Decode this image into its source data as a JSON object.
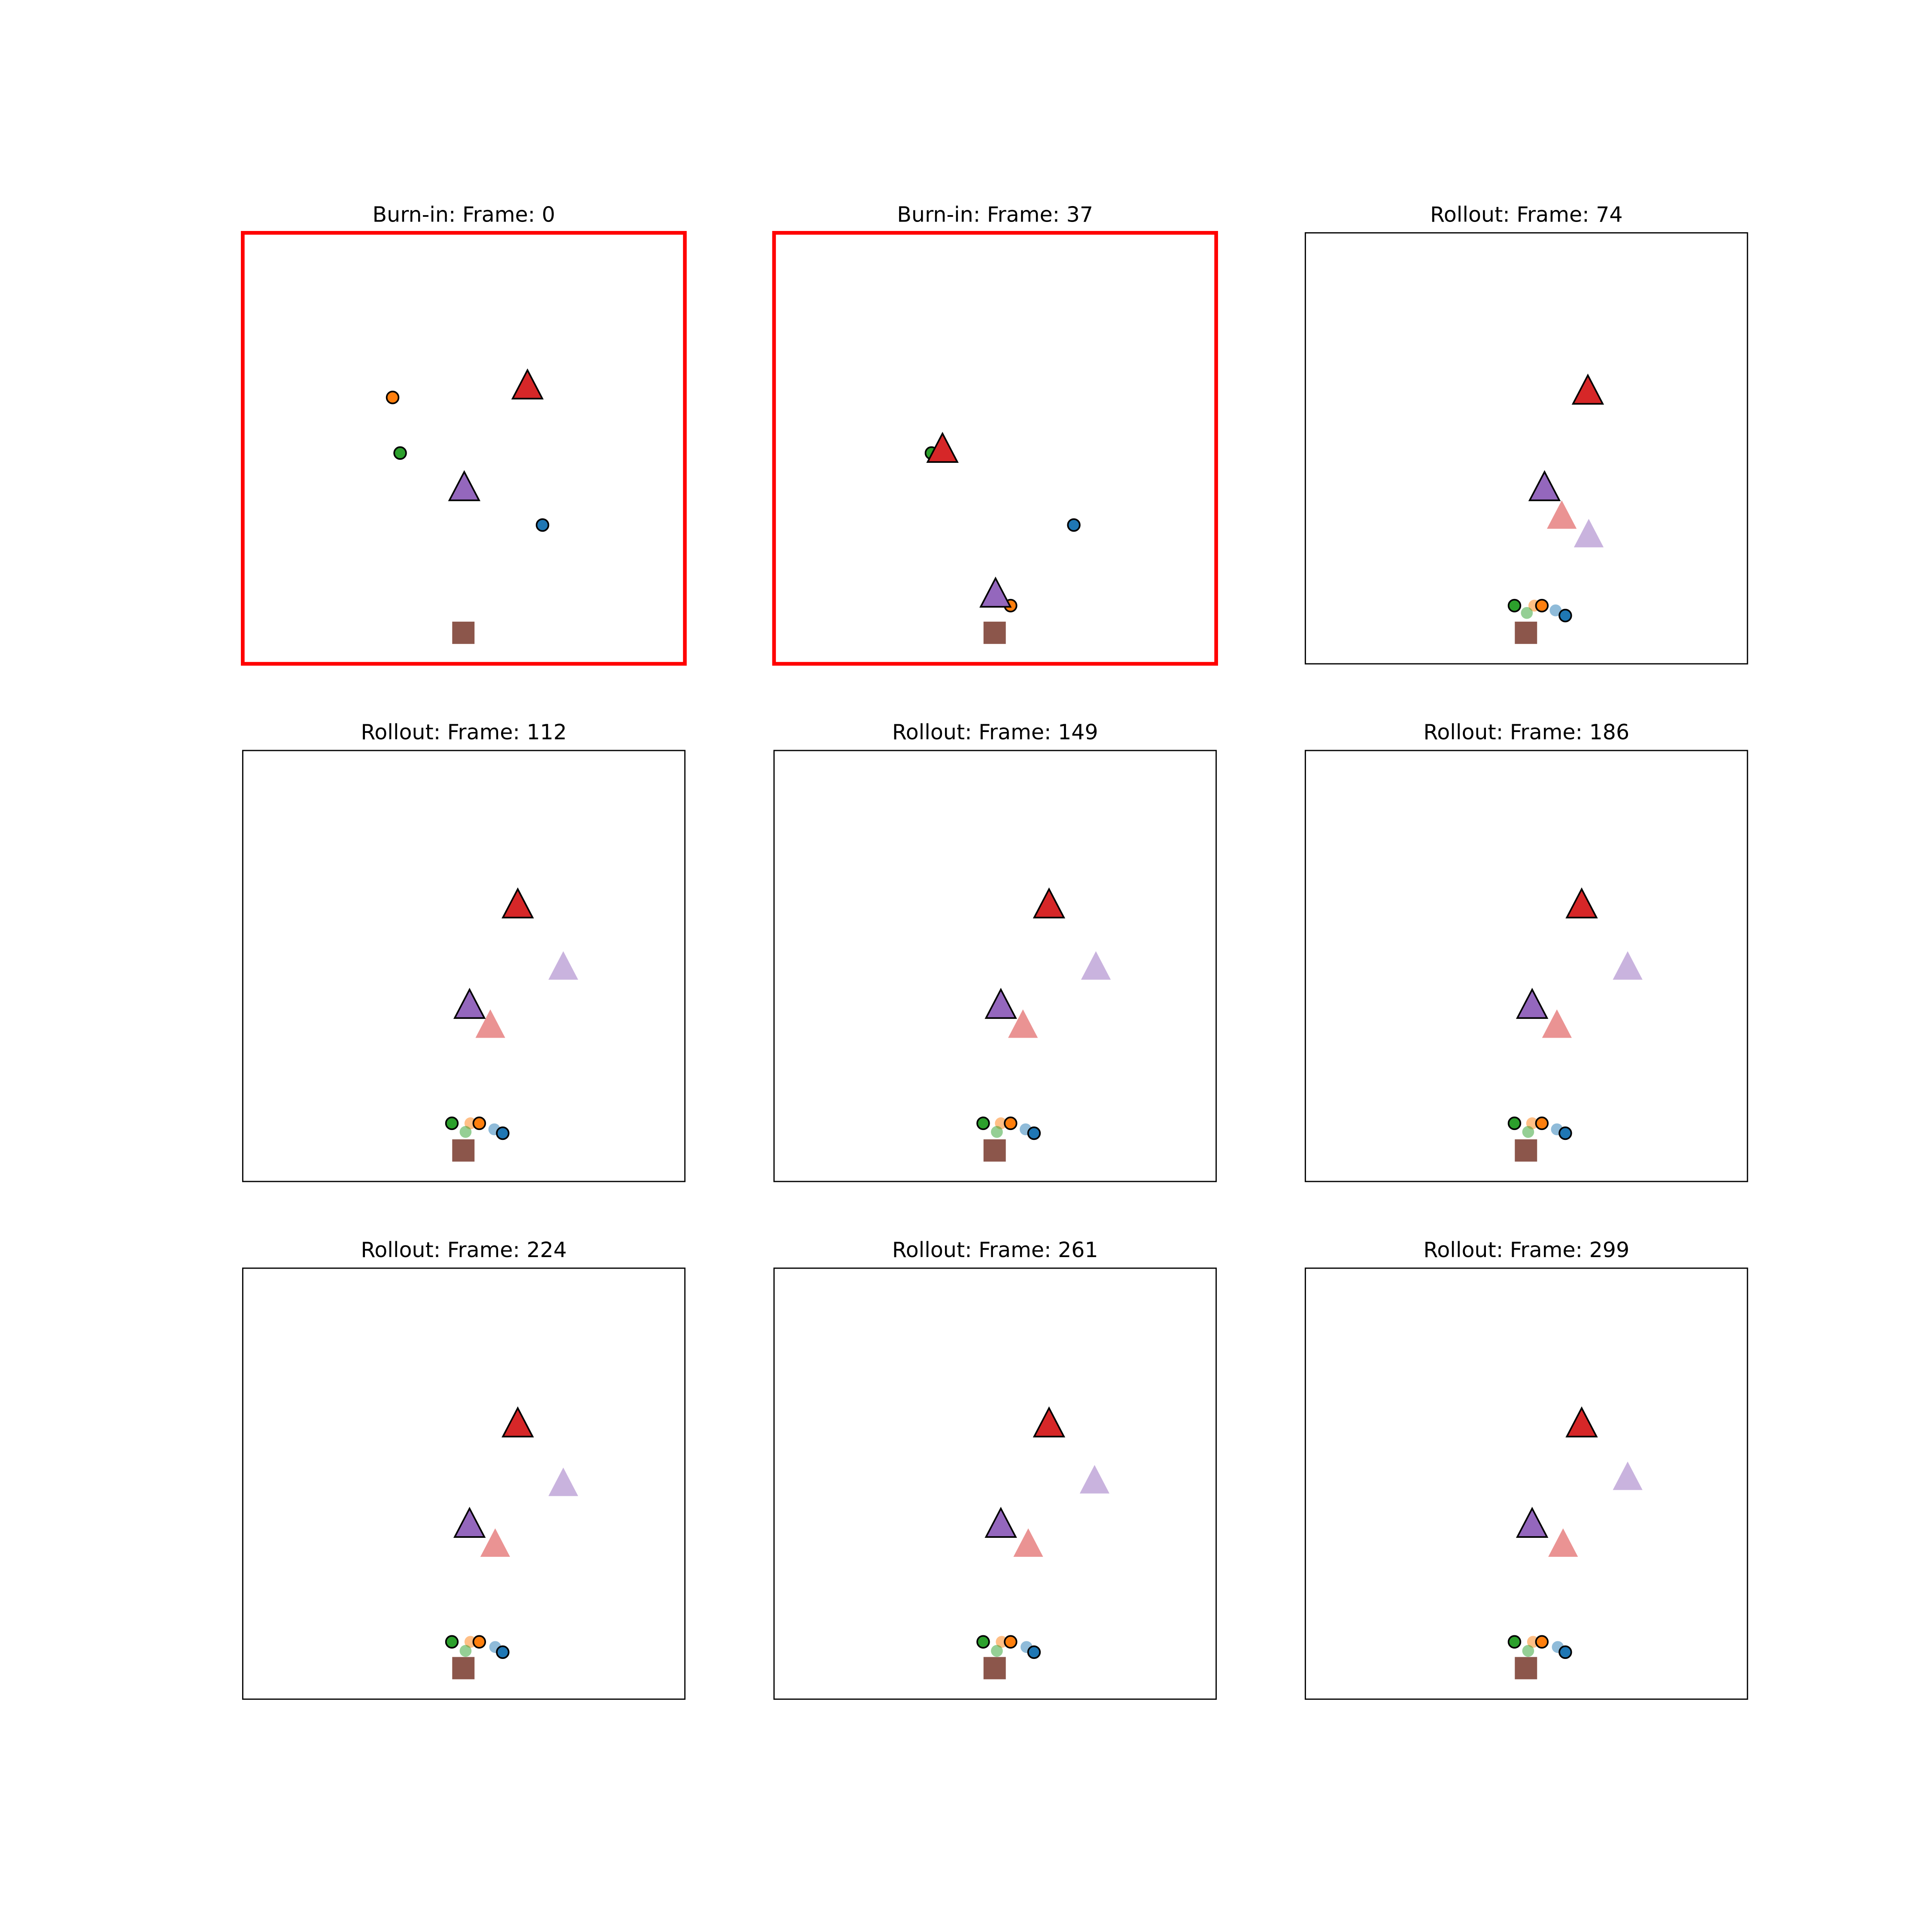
{
  "chart_data": {
    "type": "scatter",
    "xlim": [
      0,
      1
    ],
    "ylim": [
      0,
      1
    ],
    "panels": [
      {
        "title": "Burn-in: Frame: 0",
        "highlighted": true,
        "markers": [
          {
            "shape": "circle",
            "color": "#ff7f0e",
            "faded": false,
            "x": 0.339,
            "y": 0.618
          },
          {
            "shape": "triangle",
            "color": "#d62728",
            "faded": false,
            "x": 0.644,
            "y": 0.644
          },
          {
            "shape": "circle",
            "color": "#2ca02c",
            "faded": false,
            "x": 0.356,
            "y": 0.489
          },
          {
            "shape": "triangle",
            "color": "#9467bd",
            "faded": false,
            "x": 0.501,
            "y": 0.408
          },
          {
            "shape": "circle",
            "color": "#1f77b4",
            "faded": false,
            "x": 0.678,
            "y": 0.322
          },
          {
            "shape": "square",
            "color": "#8c564b",
            "faded": false,
            "x": 0.499,
            "y": 0.072
          }
        ]
      },
      {
        "title": "Burn-in: Frame: 37",
        "highlighted": true,
        "markers": [
          {
            "shape": "circle",
            "color": "#2ca02c",
            "faded": false,
            "x": 0.356,
            "y": 0.489
          },
          {
            "shape": "triangle",
            "color": "#d62728",
            "faded": false,
            "x": 0.381,
            "y": 0.497
          },
          {
            "shape": "circle",
            "color": "#1f77b4",
            "faded": false,
            "x": 0.678,
            "y": 0.322
          },
          {
            "shape": "circle",
            "color": "#ff7f0e",
            "faded": false,
            "x": 0.535,
            "y": 0.135
          },
          {
            "shape": "triangle",
            "color": "#9467bd",
            "faded": false,
            "x": 0.501,
            "y": 0.161
          },
          {
            "shape": "square",
            "color": "#8c564b",
            "faded": false,
            "x": 0.499,
            "y": 0.072
          }
        ]
      },
      {
        "title": "Rollout: Frame: 74",
        "highlighted": false,
        "markers": [
          {
            "shape": "triangle",
            "color": "#d62728",
            "faded": true,
            "x": 0.58,
            "y": 0.342
          },
          {
            "shape": "triangle",
            "color": "#9467bd",
            "faded": true,
            "x": 0.641,
            "y": 0.299
          },
          {
            "shape": "circle",
            "color": "#ff7f0e",
            "faded": true,
            "x": 0.518,
            "y": 0.135
          },
          {
            "shape": "circle",
            "color": "#2ca02c",
            "faded": true,
            "x": 0.501,
            "y": 0.118
          },
          {
            "shape": "circle",
            "color": "#1f77b4",
            "faded": true,
            "x": 0.566,
            "y": 0.124
          },
          {
            "shape": "triangle",
            "color": "#d62728",
            "faded": false,
            "x": 0.639,
            "y": 0.632
          },
          {
            "shape": "triangle",
            "color": "#9467bd",
            "faded": false,
            "x": 0.541,
            "y": 0.408
          },
          {
            "shape": "circle",
            "color": "#2ca02c",
            "faded": false,
            "x": 0.473,
            "y": 0.135
          },
          {
            "shape": "circle",
            "color": "#ff7f0e",
            "faded": false,
            "x": 0.535,
            "y": 0.135
          },
          {
            "shape": "circle",
            "color": "#1f77b4",
            "faded": false,
            "x": 0.588,
            "y": 0.112
          },
          {
            "shape": "square",
            "color": "#8c564b",
            "faded": false,
            "x": 0.499,
            "y": 0.072
          }
        ]
      },
      {
        "title": "Rollout: Frame: 112",
        "highlighted": false,
        "markers": [
          {
            "shape": "triangle",
            "color": "#9467bd",
            "faded": true,
            "x": 0.725,
            "y": 0.497
          },
          {
            "shape": "triangle",
            "color": "#d62728",
            "faded": true,
            "x": 0.56,
            "y": 0.362
          },
          {
            "shape": "circle",
            "color": "#ff7f0e",
            "faded": true,
            "x": 0.515,
            "y": 0.135
          },
          {
            "shape": "circle",
            "color": "#2ca02c",
            "faded": true,
            "x": 0.504,
            "y": 0.115
          },
          {
            "shape": "circle",
            "color": "#1f77b4",
            "faded": true,
            "x": 0.569,
            "y": 0.121
          },
          {
            "shape": "triangle",
            "color": "#d62728",
            "faded": false,
            "x": 0.622,
            "y": 0.641
          },
          {
            "shape": "triangle",
            "color": "#9467bd",
            "faded": false,
            "x": 0.513,
            "y": 0.408
          },
          {
            "shape": "circle",
            "color": "#2ca02c",
            "faded": false,
            "x": 0.473,
            "y": 0.135
          },
          {
            "shape": "circle",
            "color": "#ff7f0e",
            "faded": false,
            "x": 0.535,
            "y": 0.135
          },
          {
            "shape": "circle",
            "color": "#1f77b4",
            "faded": false,
            "x": 0.588,
            "y": 0.112
          },
          {
            "shape": "square",
            "color": "#8c564b",
            "faded": false,
            "x": 0.499,
            "y": 0.072
          }
        ]
      },
      {
        "title": "Rollout: Frame: 149",
        "highlighted": false,
        "markers": [
          {
            "shape": "triangle",
            "color": "#9467bd",
            "faded": true,
            "x": 0.728,
            "y": 0.497
          },
          {
            "shape": "triangle",
            "color": "#d62728",
            "faded": true,
            "x": 0.563,
            "y": 0.362
          },
          {
            "shape": "circle",
            "color": "#ff7f0e",
            "faded": true,
            "x": 0.513,
            "y": 0.135
          },
          {
            "shape": "circle",
            "color": "#2ca02c",
            "faded": true,
            "x": 0.504,
            "y": 0.115
          },
          {
            "shape": "circle",
            "color": "#1f77b4",
            "faded": true,
            "x": 0.569,
            "y": 0.121
          },
          {
            "shape": "triangle",
            "color": "#d62728",
            "faded": false,
            "x": 0.622,
            "y": 0.641
          },
          {
            "shape": "triangle",
            "color": "#9467bd",
            "faded": false,
            "x": 0.513,
            "y": 0.408
          },
          {
            "shape": "circle",
            "color": "#2ca02c",
            "faded": false,
            "x": 0.473,
            "y": 0.135
          },
          {
            "shape": "circle",
            "color": "#ff7f0e",
            "faded": false,
            "x": 0.535,
            "y": 0.135
          },
          {
            "shape": "circle",
            "color": "#1f77b4",
            "faded": false,
            "x": 0.588,
            "y": 0.112
          },
          {
            "shape": "square",
            "color": "#8c564b",
            "faded": false,
            "x": 0.499,
            "y": 0.072
          }
        ]
      },
      {
        "title": "Rollout: Frame: 186",
        "highlighted": false,
        "markers": [
          {
            "shape": "triangle",
            "color": "#9467bd",
            "faded": true,
            "x": 0.729,
            "y": 0.497
          },
          {
            "shape": "triangle",
            "color": "#d62728",
            "faded": true,
            "x": 0.569,
            "y": 0.362
          },
          {
            "shape": "circle",
            "color": "#ff7f0e",
            "faded": true,
            "x": 0.513,
            "y": 0.135
          },
          {
            "shape": "circle",
            "color": "#2ca02c",
            "faded": true,
            "x": 0.504,
            "y": 0.115
          },
          {
            "shape": "circle",
            "color": "#1f77b4",
            "faded": true,
            "x": 0.569,
            "y": 0.121
          },
          {
            "shape": "triangle",
            "color": "#d62728",
            "faded": false,
            "x": 0.625,
            "y": 0.641
          },
          {
            "shape": "triangle",
            "color": "#9467bd",
            "faded": false,
            "x": 0.513,
            "y": 0.408
          },
          {
            "shape": "circle",
            "color": "#2ca02c",
            "faded": false,
            "x": 0.473,
            "y": 0.135
          },
          {
            "shape": "circle",
            "color": "#ff7f0e",
            "faded": false,
            "x": 0.535,
            "y": 0.135
          },
          {
            "shape": "circle",
            "color": "#1f77b4",
            "faded": false,
            "x": 0.588,
            "y": 0.112
          },
          {
            "shape": "square",
            "color": "#8c564b",
            "faded": false,
            "x": 0.499,
            "y": 0.072
          }
        ]
      },
      {
        "title": "Rollout: Frame: 224",
        "highlighted": false,
        "markers": [
          {
            "shape": "triangle",
            "color": "#9467bd",
            "faded": true,
            "x": 0.725,
            "y": 0.5
          },
          {
            "shape": "triangle",
            "color": "#d62728",
            "faded": true,
            "x": 0.571,
            "y": 0.359
          },
          {
            "shape": "circle",
            "color": "#ff7f0e",
            "faded": true,
            "x": 0.515,
            "y": 0.133
          },
          {
            "shape": "circle",
            "color": "#2ca02c",
            "faded": true,
            "x": 0.504,
            "y": 0.112
          },
          {
            "shape": "circle",
            "color": "#1f77b4",
            "faded": true,
            "x": 0.571,
            "y": 0.121
          },
          {
            "shape": "triangle",
            "color": "#d62728",
            "faded": false,
            "x": 0.622,
            "y": 0.638
          },
          {
            "shape": "triangle",
            "color": "#9467bd",
            "faded": false,
            "x": 0.513,
            "y": 0.405
          },
          {
            "shape": "circle",
            "color": "#2ca02c",
            "faded": false,
            "x": 0.473,
            "y": 0.133
          },
          {
            "shape": "circle",
            "color": "#ff7f0e",
            "faded": false,
            "x": 0.535,
            "y": 0.133
          },
          {
            "shape": "circle",
            "color": "#1f77b4",
            "faded": false,
            "x": 0.588,
            "y": 0.109
          },
          {
            "shape": "square",
            "color": "#8c564b",
            "faded": false,
            "x": 0.499,
            "y": 0.072
          }
        ]
      },
      {
        "title": "Rollout: Frame: 261",
        "highlighted": false,
        "markers": [
          {
            "shape": "triangle",
            "color": "#9467bd",
            "faded": true,
            "x": 0.725,
            "y": 0.506
          },
          {
            "shape": "triangle",
            "color": "#d62728",
            "faded": true,
            "x": 0.575,
            "y": 0.359
          },
          {
            "shape": "circle",
            "color": "#ff7f0e",
            "faded": true,
            "x": 0.515,
            "y": 0.133
          },
          {
            "shape": "circle",
            "color": "#2ca02c",
            "faded": true,
            "x": 0.504,
            "y": 0.112
          },
          {
            "shape": "circle",
            "color": "#1f77b4",
            "faded": true,
            "x": 0.571,
            "y": 0.121
          },
          {
            "shape": "triangle",
            "color": "#d62728",
            "faded": false,
            "x": 0.622,
            "y": 0.638
          },
          {
            "shape": "triangle",
            "color": "#9467bd",
            "faded": false,
            "x": 0.513,
            "y": 0.405
          },
          {
            "shape": "circle",
            "color": "#2ca02c",
            "faded": false,
            "x": 0.473,
            "y": 0.133
          },
          {
            "shape": "circle",
            "color": "#ff7f0e",
            "faded": false,
            "x": 0.535,
            "y": 0.133
          },
          {
            "shape": "circle",
            "color": "#1f77b4",
            "faded": false,
            "x": 0.588,
            "y": 0.109
          },
          {
            "shape": "square",
            "color": "#8c564b",
            "faded": false,
            "x": 0.499,
            "y": 0.072
          }
        ]
      },
      {
        "title": "Rollout: Frame: 299",
        "highlighted": false,
        "markers": [
          {
            "shape": "triangle",
            "color": "#9467bd",
            "faded": true,
            "x": 0.729,
            "y": 0.514
          },
          {
            "shape": "triangle",
            "color": "#d62728",
            "faded": true,
            "x": 0.583,
            "y": 0.359
          },
          {
            "shape": "circle",
            "color": "#ff7f0e",
            "faded": true,
            "x": 0.515,
            "y": 0.133
          },
          {
            "shape": "circle",
            "color": "#2ca02c",
            "faded": true,
            "x": 0.504,
            "y": 0.112
          },
          {
            "shape": "circle",
            "color": "#1f77b4",
            "faded": true,
            "x": 0.571,
            "y": 0.121
          },
          {
            "shape": "triangle",
            "color": "#d62728",
            "faded": false,
            "x": 0.625,
            "y": 0.638
          },
          {
            "shape": "triangle",
            "color": "#9467bd",
            "faded": false,
            "x": 0.513,
            "y": 0.405
          },
          {
            "shape": "circle",
            "color": "#2ca02c",
            "faded": false,
            "x": 0.473,
            "y": 0.133
          },
          {
            "shape": "circle",
            "color": "#ff7f0e",
            "faded": false,
            "x": 0.535,
            "y": 0.133
          },
          {
            "shape": "circle",
            "color": "#1f77b4",
            "faded": false,
            "x": 0.588,
            "y": 0.109
          },
          {
            "shape": "square",
            "color": "#8c564b",
            "faded": false,
            "x": 0.499,
            "y": 0.072
          }
        ]
      }
    ]
  }
}
